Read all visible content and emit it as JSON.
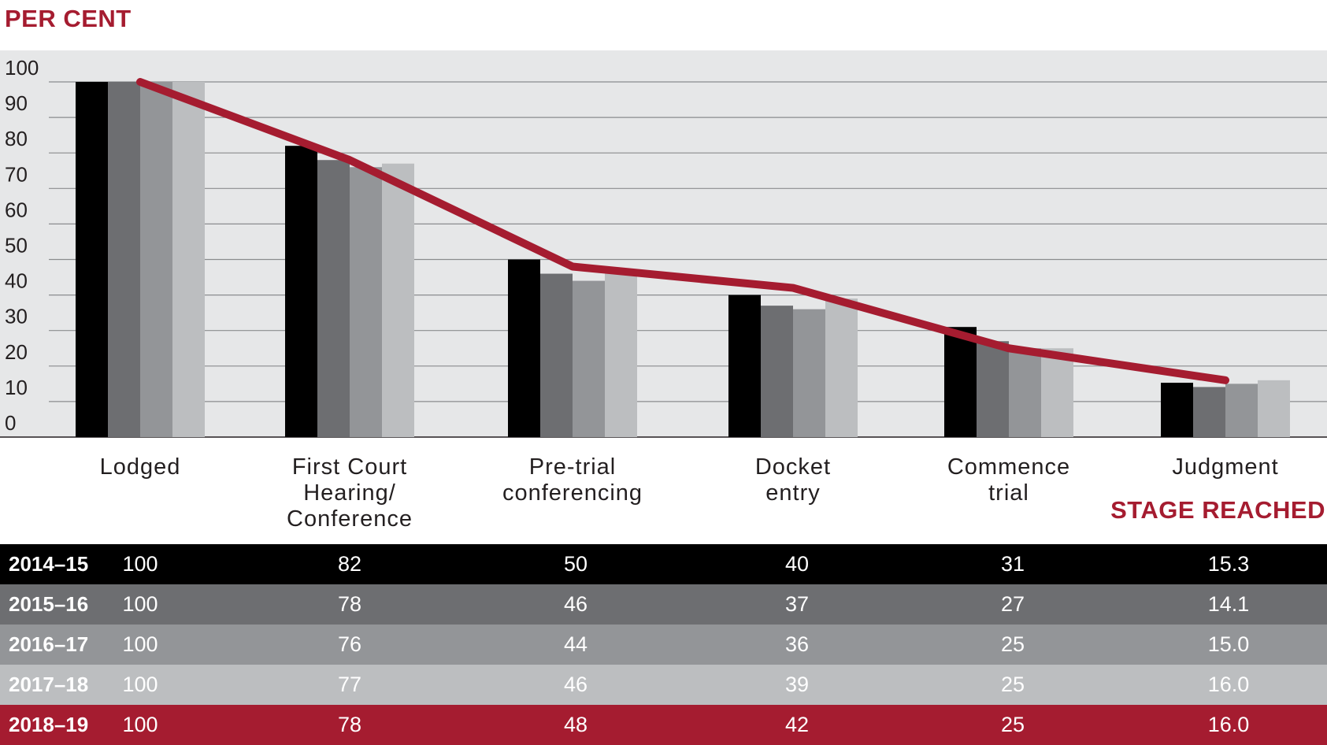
{
  "chart_data": {
    "type": "bar",
    "ylabel": "PER CENT",
    "xlabel": "STAGE REACHED",
    "ylim": [
      0,
      100
    ],
    "yticks": [
      "0",
      "10",
      "20",
      "30",
      "40",
      "50",
      "60",
      "70",
      "80",
      "90",
      "100"
    ],
    "categories": [
      "Lodged",
      "First Court Hearing/ Conference",
      "Pre-trial conferencing",
      "Docket entry",
      "Commence trial",
      "Judgment"
    ],
    "category_lines": [
      [
        "Lodged"
      ],
      [
        "First Court",
        "Hearing/",
        "Conference"
      ],
      [
        "Pre-trial",
        "conferencing"
      ],
      [
        "Docket",
        "entry"
      ],
      [
        "Commence",
        "trial"
      ],
      [
        "Judgment"
      ]
    ],
    "grid": true,
    "series": [
      {
        "name": "2014–15",
        "values": [
          100,
          82,
          50,
          40,
          31,
          15.3
        ],
        "labels": [
          "100",
          "82",
          "50",
          "40",
          "31",
          "15.3"
        ],
        "color": "#000000",
        "type": "bar"
      },
      {
        "name": "2015–16",
        "values": [
          100,
          78,
          46,
          37,
          27,
          14.1
        ],
        "labels": [
          "100",
          "78",
          "46",
          "37",
          "27",
          "14.1"
        ],
        "color": "#6d6e71",
        "type": "bar"
      },
      {
        "name": "2016–17",
        "values": [
          100,
          76,
          44,
          36,
          25,
          15.0
        ],
        "labels": [
          "100",
          "76",
          "44",
          "36",
          "25",
          "15.0"
        ],
        "color": "#939598",
        "type": "bar"
      },
      {
        "name": "2017–18",
        "values": [
          100,
          77,
          46,
          39,
          25,
          16.0
        ],
        "labels": [
          "100",
          "77",
          "46",
          "39",
          "25",
          "16.0"
        ],
        "color": "#bcbec0",
        "type": "bar"
      },
      {
        "name": "2018–19",
        "values": [
          100,
          78,
          48,
          42,
          25,
          16.0
        ],
        "labels": [
          "100",
          "78",
          "48",
          "42",
          "25",
          "16.0"
        ],
        "color": "#a51c30",
        "type": "line"
      }
    ]
  },
  "colors": {
    "plot_background": "#e6e7e8",
    "gridline": "#8a8c8e",
    "accent_red": "#a51c30"
  }
}
